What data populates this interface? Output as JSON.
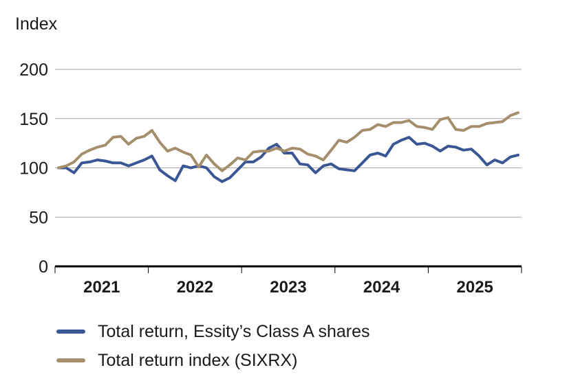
{
  "chart_data": {
    "type": "line",
    "ylabel": "Index",
    "ylim": [
      0,
      200
    ],
    "yticks": [
      "0",
      "50",
      "100",
      "150",
      "200"
    ],
    "grid": true,
    "xlim": [
      "2021-01",
      "2025-12"
    ],
    "year_labels": [
      "2021",
      "2022",
      "2023",
      "2024",
      "2025"
    ],
    "legend_position": "bottom",
    "x": [
      "2021-01",
      "2021-02",
      "2021-03",
      "2021-04",
      "2021-05",
      "2021-06",
      "2021-07",
      "2021-08",
      "2021-09",
      "2021-10",
      "2021-11",
      "2021-12",
      "2022-01",
      "2022-02",
      "2022-03",
      "2022-04",
      "2022-05",
      "2022-06",
      "2022-07",
      "2022-08",
      "2022-09",
      "2022-10",
      "2022-11",
      "2022-12",
      "2023-01",
      "2023-02",
      "2023-03",
      "2023-04",
      "2023-05",
      "2023-06",
      "2023-07",
      "2023-08",
      "2023-09",
      "2023-10",
      "2023-11",
      "2023-12",
      "2024-01",
      "2024-02",
      "2024-03",
      "2024-04",
      "2024-05",
      "2024-06",
      "2024-07",
      "2024-08",
      "2024-09",
      "2024-10",
      "2024-11",
      "2024-12",
      "2025-01",
      "2025-02",
      "2025-03",
      "2025-04",
      "2025-05",
      "2025-06",
      "2025-07",
      "2025-08",
      "2025-09",
      "2025-10",
      "2025-11",
      "2025-12"
    ],
    "series": [
      {
        "name": "Total return, Essity’s Class A shares",
        "color": "#3a5694",
        "values": [
          100,
          100,
          95,
          105,
          106,
          108,
          107,
          105,
          105,
          102,
          105,
          108,
          112,
          98,
          92,
          87,
          102,
          100,
          102,
          100,
          91,
          86,
          90,
          98,
          106,
          106,
          111,
          120,
          124,
          115,
          115,
          104,
          103,
          95,
          102,
          104,
          99,
          98,
          97,
          105,
          113,
          115,
          112,
          124,
          128,
          131,
          124,
          125,
          122,
          117,
          122,
          121,
          118,
          119,
          112,
          103,
          108,
          105,
          111,
          113
        ]
      },
      {
        "name": "Total return index (SIXRX)",
        "color": "#a58e6c",
        "values": [
          100,
          102,
          106,
          114,
          118,
          121,
          123,
          131,
          132,
          124,
          130,
          132,
          138,
          126,
          117,
          120,
          116,
          113,
          101,
          113,
          104,
          97,
          103,
          110,
          108,
          116,
          117,
          117,
          120,
          117,
          120,
          119,
          114,
          112,
          108,
          118,
          128,
          126,
          131,
          138,
          139,
          144,
          142,
          146,
          146,
          148,
          142,
          141,
          139,
          149,
          151,
          139,
          138,
          142,
          142,
          145,
          146,
          147,
          153,
          156
        ]
      }
    ]
  }
}
